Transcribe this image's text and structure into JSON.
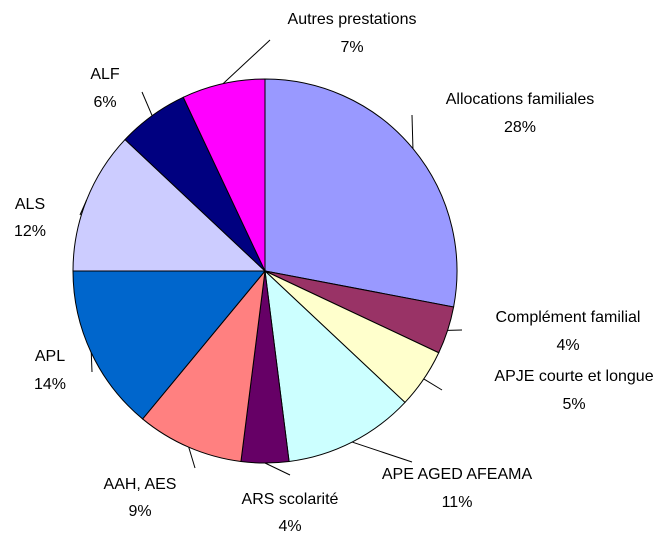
{
  "chart_data": {
    "type": "pie",
    "categories": [
      "Allocations familiales",
      "Complément familial",
      "APJE courte et longue",
      "APE AGED AFEAMA",
      "ARS scolarité",
      "AAH, AES",
      "APL",
      "ALS",
      "ALF",
      "Autres prestations"
    ],
    "values": [
      28,
      4,
      5,
      11,
      4,
      9,
      14,
      12,
      6,
      7
    ],
    "value_labels": [
      "28%",
      "4%",
      "5%",
      "11%",
      "4%",
      "9%",
      "14%",
      "12%",
      "6%",
      "7%"
    ],
    "colors": [
      "#9999ff",
      "#993366",
      "#ffffcc",
      "#ccffff",
      "#660066",
      "#ff8080",
      "#0066cc",
      "#ccccff",
      "#000080",
      "#ff00ff"
    ]
  }
}
